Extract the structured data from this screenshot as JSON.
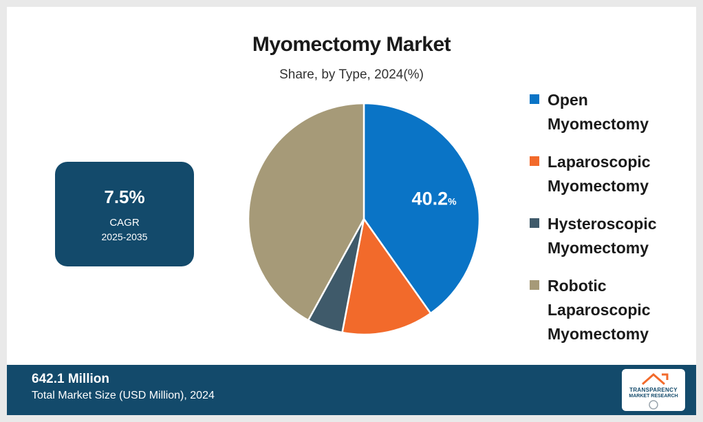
{
  "chart_data": {
    "type": "pie",
    "title": "Myomectomy Market",
    "subtitle": "Share, by Type, 2024(%)",
    "categories": [
      "Open Myomectomy",
      "Laparoscopic Myomectomy",
      "Hysteroscopic Myomectomy",
      "Robotic Laparoscopic Myomectomy"
    ],
    "values": [
      40.2,
      12.8,
      5.0,
      42.0
    ],
    "colors": [
      "#0a74c6",
      "#f26a2b",
      "#3f5a6a",
      "#a69a78"
    ],
    "data_labels": [
      {
        "value": "40.2",
        "unit": "%"
      },
      null,
      null,
      null
    ],
    "legend_position": "right"
  },
  "cagr": {
    "value": "7.5%",
    "label": "CAGR",
    "period": "2025-2035"
  },
  "footer": {
    "value": "642.1 Million",
    "label": "Total Market Size (USD Million), 2024",
    "background": "#134a6b"
  },
  "logo": {
    "line1": "TRANSPARENCY",
    "line2": "MARKET RESEARCH"
  }
}
